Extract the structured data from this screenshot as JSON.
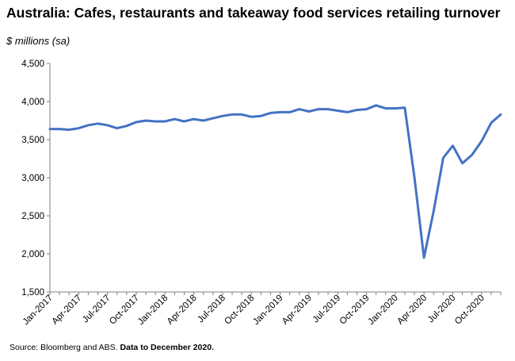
{
  "title": "Australia: Cafes, restaurants and takeaway food services retailing turnover",
  "source": {
    "text": "Source: Bloomberg and ABS.",
    "emphasis": "Data to December 2020."
  },
  "chart_data": {
    "type": "line",
    "title": "Australia: Cafes, restaurants and takeaway food services retailing turnover",
    "ylabel": "$ millions (sa)",
    "xlabel": "",
    "ylim": [
      1500,
      4500
    ],
    "yticks": [
      "1,500",
      "2,000",
      "2,500",
      "3,000",
      "3,500",
      "4,000",
      "4,500"
    ],
    "ytick_values": [
      1500,
      2000,
      2500,
      3000,
      3500,
      4000,
      4500
    ],
    "xtick_labels": [
      "Jan-2017",
      "Apr-2017",
      "Jul-2017",
      "Oct-2017",
      "Jan-2018",
      "Apr-2018",
      "Jul-2018",
      "Oct-2018",
      "Jan-2019",
      "Apr-2019",
      "Jul-2019",
      "Oct-2019",
      "Jan-2020",
      "Apr-2020",
      "Jul-2020",
      "Oct-2020"
    ],
    "grid": false,
    "line_color": "#4472C4",
    "series": [
      {
        "values": [
          3640,
          3640,
          3630,
          3650,
          3690,
          3710,
          3690,
          3650,
          3680,
          3730,
          3750,
          3740,
          3740,
          3770,
          3740,
          3770,
          3750,
          3780,
          3810,
          3830,
          3830,
          3800,
          3810,
          3850,
          3860,
          3860,
          3900,
          3870,
          3900,
          3900,
          3880,
          3860,
          3890,
          3900,
          3950,
          3910,
          3910,
          3920,
          3010,
          1950,
          2560,
          3260,
          3420,
          3190,
          3300,
          3480,
          3720,
          3830
        ]
      }
    ]
  }
}
